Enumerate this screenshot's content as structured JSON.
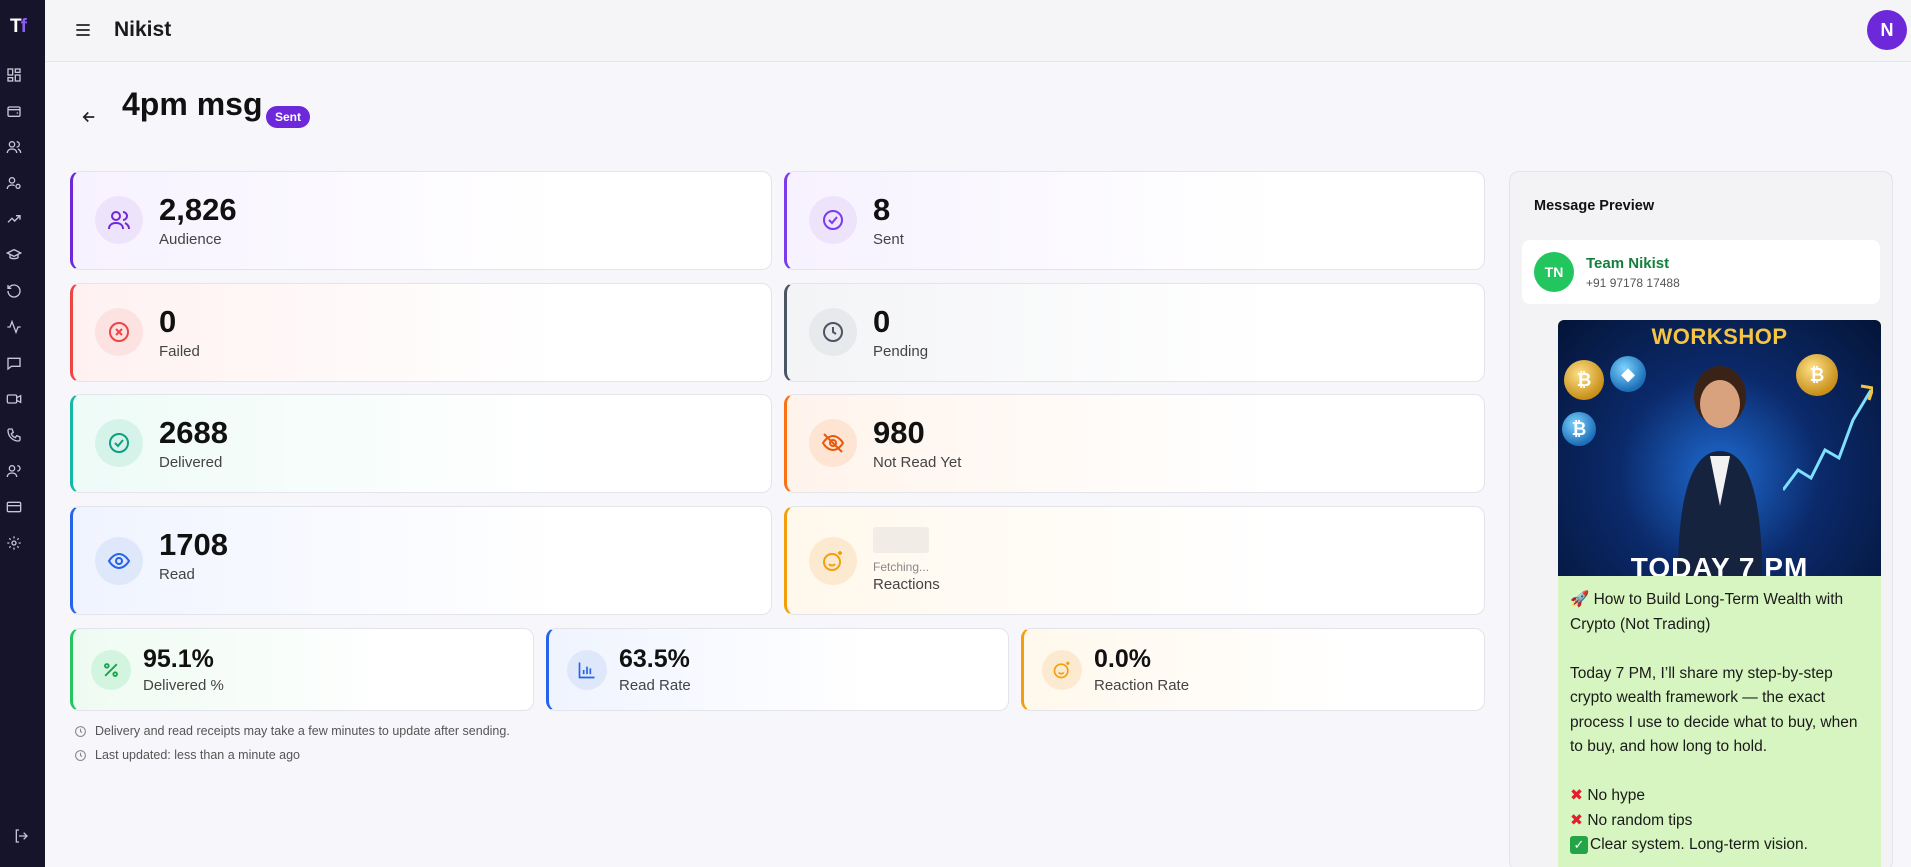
{
  "app": {
    "logo_text": "Tf",
    "logo_main": "T",
    "logo_accent": "f",
    "brand": "Nikist",
    "avatar_initial": "N"
  },
  "page": {
    "title": "4pm msg",
    "status_badge": "Sent"
  },
  "colors": {
    "accent": "#6d28d9",
    "success": "#22c55e",
    "danger": "#ef4444",
    "warning": "#f97316",
    "info": "#2563eb"
  },
  "stats": {
    "audience": {
      "value": "2,826",
      "label": "Audience"
    },
    "sent": {
      "value": "8",
      "label": "Sent"
    },
    "failed": {
      "value": "0",
      "label": "Failed"
    },
    "pending": {
      "value": "0",
      "label": "Pending"
    },
    "delivered": {
      "value": "2688",
      "label": "Delivered"
    },
    "not_read": {
      "value": "980",
      "label": "Not Read Yet"
    },
    "read": {
      "value": "1708",
      "label": "Read"
    },
    "reactions": {
      "status": "Fetching...",
      "label": "Reactions"
    }
  },
  "rates": {
    "delivered": {
      "value": "95.1%",
      "label": "Delivered %"
    },
    "read": {
      "value": "63.5%",
      "label": "Read Rate"
    },
    "reaction": {
      "value": "0.0%",
      "label": "Reaction Rate"
    }
  },
  "notes": {
    "receipts": "Delivery and read receipts may take a few minutes to update after sending.",
    "updated": "Last updated: less than a minute ago"
  },
  "preview": {
    "title": "Message Preview",
    "contact_initials": "TN",
    "contact_name": "Team Nikist",
    "contact_phone": "+91 97178 17488",
    "poster_title": "WORKSHOP",
    "poster_footer": "TODAY 7 PM",
    "message_line1": "🚀 How to Build Long-Term Wealth with Crypto (Not Trading)",
    "message_line2": "Today 7 PM, I’ll share my step-by-step crypto wealth framework — the exact process I use to decide what to buy, when to buy, and how long to hold.",
    "bullet1": "No hype",
    "bullet2": "No random tips",
    "bullet3": "Clear system. Long-term vision."
  },
  "sidebar_icons": [
    "dashboard-icon",
    "wallet-icon",
    "users-icon",
    "user-settings-icon",
    "trending-icon",
    "graduation-cap-icon",
    "refresh-icon",
    "activity-icon",
    "chat-icon",
    "video-icon",
    "phone-icon",
    "contacts-icon",
    "card-icon",
    "gear-icon",
    "logout-icon"
  ]
}
